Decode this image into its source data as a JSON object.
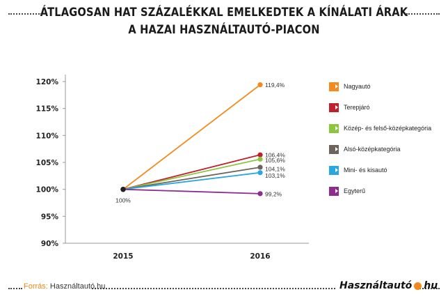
{
  "title_lines": [
    "ÁTLAGOSAN HAT SZÁZALÉKKAL EMELKEDTEK A KÍNÁLATI ÁRAK",
    "A HAZAI HASZNÁLTAUTÓ-PIACON"
  ],
  "footer": {
    "source_key": "Forrás:",
    "source_value": "Használtautó.hu",
    "brand_left": "Használtautó",
    "brand_right": "hu"
  },
  "chart_data": {
    "type": "line",
    "x": [
      "2015",
      "2016"
    ],
    "ylim": [
      90,
      120
    ],
    "yticks": [
      90,
      95,
      100,
      105,
      110,
      115,
      120
    ],
    "ytick_labels": [
      "90%",
      "95%",
      "100%",
      "105%",
      "110%",
      "115%",
      "120%"
    ],
    "start_label": "100%",
    "grid": false,
    "legend_position": "right",
    "series": [
      {
        "name": "Nagyautó",
        "values": [
          100,
          119.4
        ],
        "end_label": "119,4%",
        "color": "#f28a1e"
      },
      {
        "name": "Terepjáró",
        "values": [
          100,
          106.4
        ],
        "end_label": "106,4%",
        "color": "#c0202e"
      },
      {
        "name": "Közép- és felső-középkategória",
        "values": [
          100,
          105.6
        ],
        "end_label": "105,6%",
        "color": "#8cc63f"
      },
      {
        "name": "Alsó-középkategória",
        "values": [
          100,
          104.1
        ],
        "end_label": "104,1%",
        "color": "#6e635b"
      },
      {
        "name": "Mini- és kisautó",
        "values": [
          100,
          103.1
        ],
        "end_label": "103,1%",
        "color": "#29a8e0"
      },
      {
        "name": "Egyterű",
        "values": [
          100,
          99.2
        ],
        "end_label": "99,2%",
        "color": "#8e2c8e"
      }
    ]
  }
}
